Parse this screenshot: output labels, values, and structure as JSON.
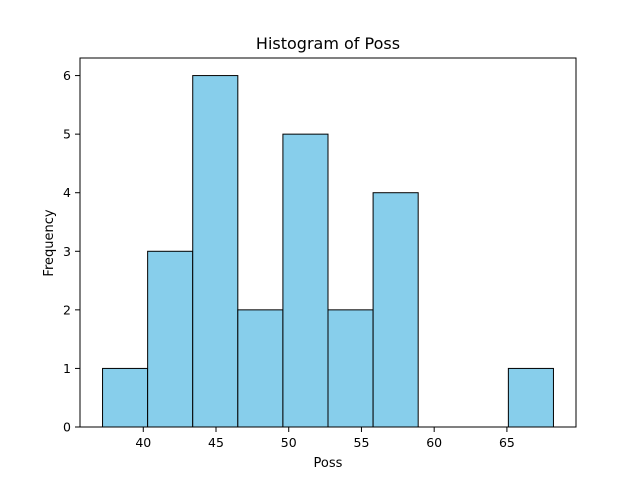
{
  "chart_data": {
    "type": "bar",
    "title": "Histogram of Poss",
    "xlabel": "Poss",
    "ylabel": "Frequency",
    "bins": [
      {
        "start": 37.2,
        "end": 40.3,
        "count": 1
      },
      {
        "start": 40.3,
        "end": 43.4,
        "count": 3
      },
      {
        "start": 43.4,
        "end": 46.5,
        "count": 6
      },
      {
        "start": 46.5,
        "end": 49.6,
        "count": 2
      },
      {
        "start": 49.6,
        "end": 52.7,
        "count": 5
      },
      {
        "start": 52.7,
        "end": 55.8,
        "count": 2
      },
      {
        "start": 55.8,
        "end": 58.9,
        "count": 4
      },
      {
        "start": 58.9,
        "end": 62.0,
        "count": 0
      },
      {
        "start": 62.0,
        "end": 65.1,
        "count": 0
      },
      {
        "start": 65.1,
        "end": 68.2,
        "count": 1
      }
    ],
    "xlim": [
      35.65,
      69.75
    ],
    "ylim": [
      0,
      6.3
    ],
    "xticks": [
      40,
      45,
      50,
      55,
      60,
      65
    ],
    "yticks": [
      0,
      1,
      2,
      3,
      4,
      5,
      6
    ],
    "grid": false,
    "colors": {
      "bar_fill": "#87CEEB",
      "bar_edge": "#000000"
    }
  }
}
